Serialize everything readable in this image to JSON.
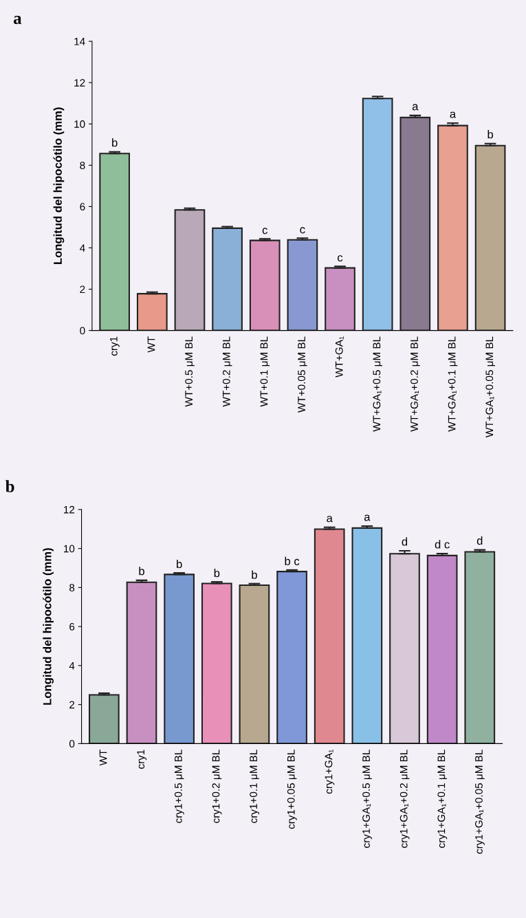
{
  "chart_data": [
    {
      "type": "bar",
      "title": "a",
      "ylabel": "Longitud del hipocótilo (mm)",
      "categories": [
        "cry1",
        "WT",
        "WT+0.5 μM BL",
        "WT+0.2 μM BL",
        "WT+0.1 μM BL",
        "WT+0.05 μM BL",
        "WT+GA₁",
        "WT+GA₁+0.5 μM BL",
        "WT+GA₁+0.2 μM BL",
        "WT+GA₁+0.1 μM BL",
        "WT+GA₁+0.05 μM BL"
      ],
      "values": [
        8.57,
        1.78,
        5.84,
        4.95,
        4.36,
        4.39,
        3.03,
        11.23,
        10.31,
        9.92,
        8.95
      ],
      "errors": [
        0.08,
        0.08,
        0.08,
        0.08,
        0.08,
        0.08,
        0.08,
        0.1,
        0.1,
        0.12,
        0.1
      ],
      "colors": [
        "#8fbf9a",
        "#e89a8a",
        "#b8a8b8",
        "#8ab0d8",
        "#d890b8",
        "#8898d0",
        "#c890c0",
        "#90c0e8",
        "#8a7a90",
        "#e8a090",
        "#b8a890"
      ],
      "ylim": [
        0,
        14
      ],
      "yticks": [
        0,
        2,
        4,
        6,
        8,
        10,
        12,
        14
      ],
      "grid": false,
      "legend": false,
      "annotations": [
        {
          "text": "b",
          "x": "cry1",
          "y": 8.65
        },
        {
          "text": "c",
          "x": "WT+0.1 μM BL",
          "y": 4.42
        },
        {
          "text": "c",
          "x": "WT+0.05 μM BL",
          "y": 4.45
        },
        {
          "text": "c",
          "x": "WT+GA₁",
          "y": 3.09
        },
        {
          "text": "a",
          "x": "WT+GA₁+0.2 μM BL",
          "y": 10.41
        },
        {
          "text": "a",
          "x": "WT+GA₁+0.1 μM BL",
          "y": 10.04
        },
        {
          "text": "b",
          "x": "WT+GA₁+0.05 μM BL",
          "y": 9.05
        }
      ]
    },
    {
      "type": "bar",
      "title": "b",
      "ylabel": "Longitud del hipocótilo (mm)",
      "categories": [
        "WT",
        "cry1",
        "cry1+0.5 μM BL",
        "cry1+0.2 μM BL",
        "cry1+0.1 μM BL",
        "cry1+0.05 μM BL",
        "cry1+GA₁",
        "cry1+GA₁+0.5 μM BL",
        "cry1+GA₁+0.2 μM BL",
        "cry1+GA₁+0.1 μM BL",
        "cry1+GA₁+0.05 μM BL"
      ],
      "values": [
        2.5,
        8.27,
        8.67,
        8.21,
        8.12,
        8.82,
        10.99,
        11.05,
        9.73,
        9.64,
        9.83
      ],
      "errors": [
        0.08,
        0.1,
        0.08,
        0.08,
        0.08,
        0.08,
        0.1,
        0.1,
        0.15,
        0.1,
        0.1
      ],
      "colors": [
        "#8aa898",
        "#c890c0",
        "#7898d0",
        "#e890b8",
        "#b8a890",
        "#8098d8",
        "#e08890",
        "#88c0e8",
        "#d8c8d8",
        "#c088c8",
        "#90b0a0"
      ],
      "ylim": [
        0,
        12
      ],
      "yticks": [
        0,
        2,
        4,
        6,
        8,
        10,
        12
      ],
      "grid": false,
      "legend": false,
      "annotations": [
        {
          "text": "b",
          "x": "cry1",
          "y": 8.37
        },
        {
          "text": "b",
          "x": "cry1+0.5 μM BL",
          "y": 8.73
        },
        {
          "text": "b",
          "x": "cry1+0.2 μM BL",
          "y": 8.27
        },
        {
          "text": "b",
          "x": "cry1+0.1 μM BL",
          "y": 8.18
        },
        {
          "text": "b c",
          "x": "cry1+0.05 μM BL",
          "y": 8.88
        },
        {
          "text": "a",
          "x": "cry1+GA₁",
          "y": 11.09
        },
        {
          "text": "a",
          "x": "cry1+GA₁+0.5 μM BL",
          "y": 11.15
        },
        {
          "text": "d",
          "x": "cry1+GA₁+0.2 μM BL",
          "y": 9.88
        },
        {
          "text": "d c",
          "x": "cry1+GA₁+0.1 μM BL",
          "y": 9.74
        },
        {
          "text": "d",
          "x": "cry1+GA₁+0.05 μM BL",
          "y": 9.93
        }
      ]
    }
  ]
}
